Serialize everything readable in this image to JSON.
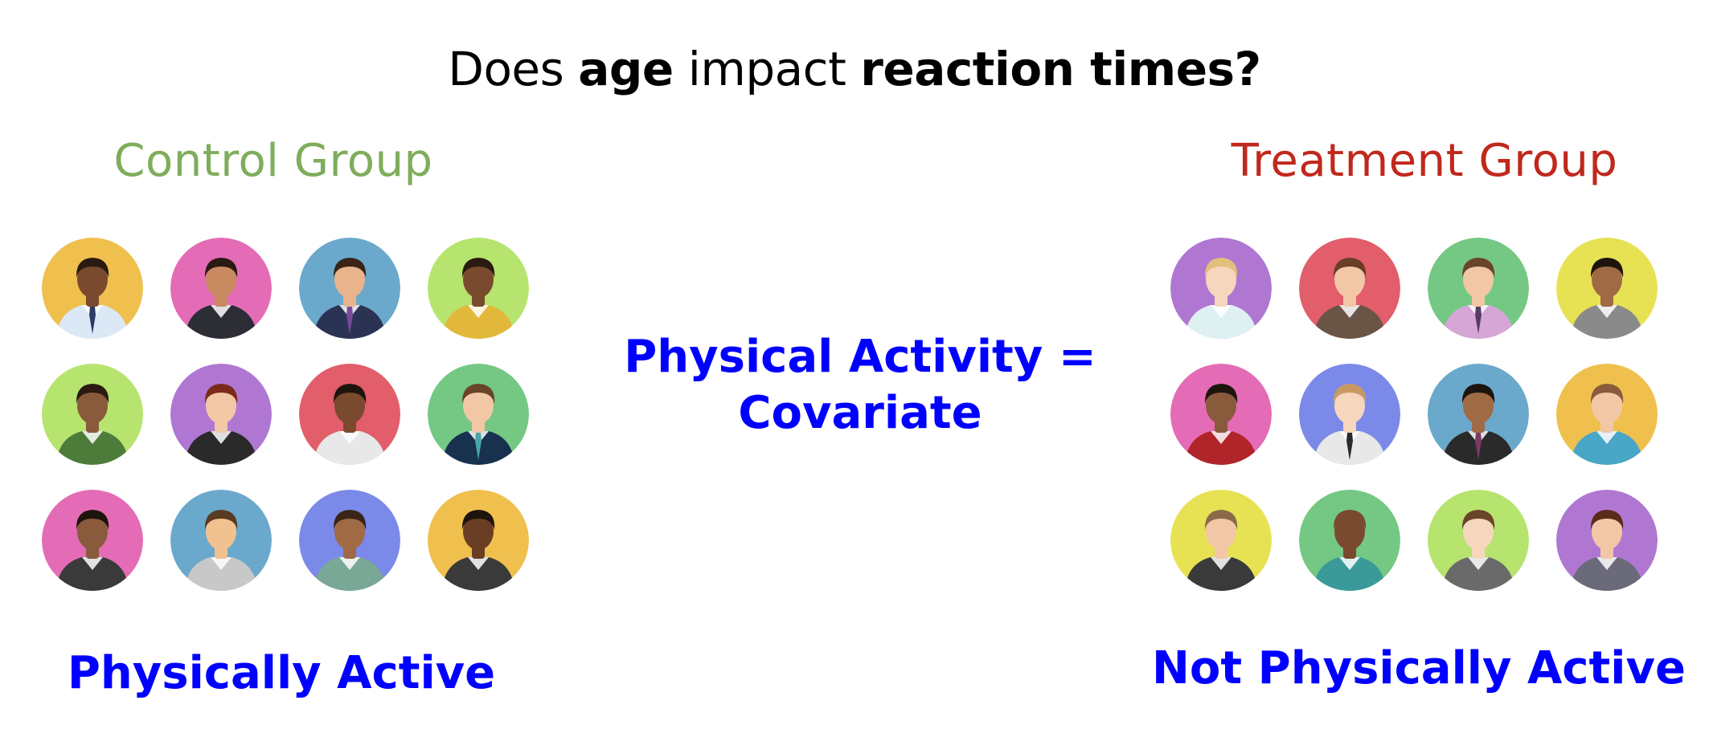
{
  "title": {
    "part1": "Does ",
    "part2": "age",
    "part3": " impact ",
    "part4": "reaction times?"
  },
  "control": {
    "label": "Control Group",
    "label_color": "#7fad5c",
    "status": "Physically Active"
  },
  "treatment": {
    "label": "Treatment Group",
    "label_color": "#c0281c",
    "status": "Not Physically Active"
  },
  "center": {
    "line1": "Physical Activity =",
    "line2": "Covariate"
  },
  "avatars_control": [
    {
      "bg": "#f0c04e",
      "skin": "#7a4a2e",
      "hair": "#2a1a10",
      "shirt": "#dbe8f6",
      "tie": "#2b3a66"
    },
    {
      "bg": "#e46cb6",
      "skin": "#c98a62",
      "hair": "#2a1a14",
      "shirt": "#2d2d35",
      "tie": ""
    },
    {
      "bg": "#6aa9cc",
      "skin": "#e9b38c",
      "hair": "#3a2417",
      "shirt": "#2b3354",
      "tie": "#7a4a9a"
    },
    {
      "bg": "#b6e46e",
      "skin": "#7a4a2e",
      "hair": "#2a1a10",
      "shirt": "#e2b83a",
      "tie": ""
    },
    {
      "bg": "#b6e46e",
      "skin": "#8a5a3c",
      "hair": "#2a1a10",
      "shirt": "#4d7c3a",
      "tie": ""
    },
    {
      "bg": "#b077d2",
      "skin": "#f2c7a6",
      "hair": "#7a2a1a",
      "shirt": "#2a2a2a",
      "tie": ""
    },
    {
      "bg": "#e25e6a",
      "skin": "#7a4a2e",
      "hair": "#1e140e",
      "shirt": "#e8e8e8",
      "tie": ""
    },
    {
      "bg": "#74c884",
      "skin": "#f2c7a6",
      "hair": "#6a4428",
      "shirt": "#17314e",
      "tie": "#46a6a6"
    },
    {
      "bg": "#e46cb6",
      "skin": "#8a5a3c",
      "hair": "#1e140e",
      "shirt": "#3a3a3a",
      "tie": ""
    },
    {
      "bg": "#6aa9cc",
      "skin": "#f2c190",
      "hair": "#5a3a22",
      "shirt": "#c8c8c8",
      "tie": ""
    },
    {
      "bg": "#7b8ae8",
      "skin": "#a06a44",
      "hair": "#3a2417",
      "shirt": "#7aa896",
      "tie": ""
    },
    {
      "bg": "#f0c04e",
      "skin": "#6a3e24",
      "hair": "#1e140e",
      "shirt": "#3a3a3a",
      "tie": ""
    }
  ],
  "avatars_treatment": [
    {
      "bg": "#b077d2",
      "skin": "#f6d6bd",
      "hair": "#e2c07a",
      "shirt": "#dff0f2",
      "tie": ""
    },
    {
      "bg": "#e25e6a",
      "skin": "#f2c7a6",
      "hair": "#6a3e24",
      "shirt": "#6a5446",
      "tie": ""
    },
    {
      "bg": "#74c884",
      "skin": "#f2c7a6",
      "hair": "#6a4428",
      "shirt": "#d6a6d6",
      "tie": "#5a3a66"
    },
    {
      "bg": "#e6e254",
      "skin": "#a06a44",
      "hair": "#1e140e",
      "shirt": "#8a8a8a",
      "tie": ""
    },
    {
      "bg": "#e46cb6",
      "skin": "#8a5a3c",
      "hair": "#1e140e",
      "shirt": "#b0242a",
      "tie": ""
    },
    {
      "bg": "#7b8ae8",
      "skin": "#f6d6bd",
      "hair": "#c89a62",
      "shirt": "#e8e8e8",
      "tie": "#2a2a2a"
    },
    {
      "bg": "#6aa9cc",
      "skin": "#a06a44",
      "hair": "#1e140e",
      "shirt": "#2a2a2a",
      "tie": "#7a3a66"
    },
    {
      "bg": "#f0c04e",
      "skin": "#f2c7a6",
      "hair": "#8a5a3c",
      "shirt": "#4aa6c6",
      "tie": ""
    },
    {
      "bg": "#e6e254",
      "skin": "#f2c7a6",
      "hair": "#8a6a4a",
      "shirt": "#3a3a3a",
      "tie": ""
    },
    {
      "bg": "#74c884",
      "skin": "#7a4a2e",
      "hair": "#7a4a2e",
      "shirt": "#3a9a9a",
      "tie": ""
    },
    {
      "bg": "#b6e46e",
      "skin": "#f6d6bd",
      "hair": "#6a4428",
      "shirt": "#6a6a6a",
      "tie": ""
    },
    {
      "bg": "#b077d2",
      "skin": "#f2c7a6",
      "hair": "#5a2a1a",
      "shirt": "#6a6a7a",
      "tie": ""
    }
  ]
}
